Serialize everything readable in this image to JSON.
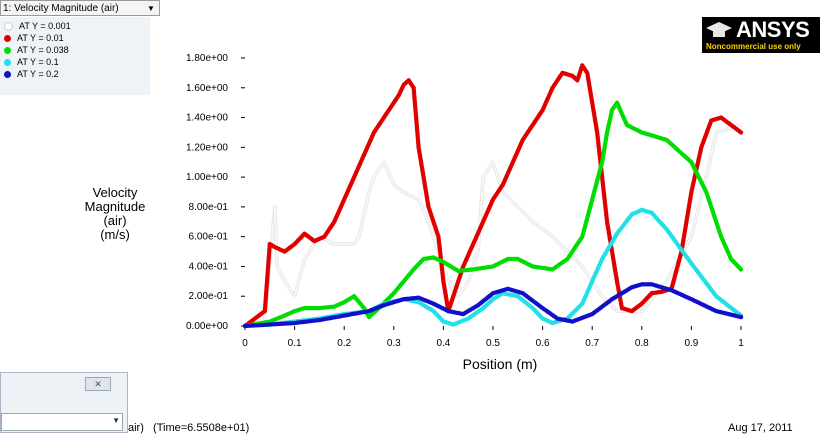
{
  "window": {
    "view_selector_label": "1: Velocity Magnitude (air)",
    "footer_left": "air)   (Time=6.5508e+01)",
    "footer_right": "Aug 17, 2011"
  },
  "logo": {
    "brand": "ANSYS",
    "subtitle": "Noncommercial use only"
  },
  "chart_data": {
    "type": "scatter",
    "xlabel": "Position (m)",
    "ylabel_lines": [
      "Velocity",
      "Magnitude",
      "(air)",
      "(m/s)"
    ],
    "xlim": [
      0,
      1
    ],
    "ylim": [
      0,
      1.8
    ],
    "x_ticks": [
      "0",
      "0.1",
      "0.2",
      "0.3",
      "0.4",
      "0.5",
      "0.6",
      "0.7",
      "0.8",
      "0.9",
      "1"
    ],
    "y_ticks": [
      "0.00e+00",
      "2.00e-01",
      "4.00e-01",
      "6.00e-01",
      "8.00e-01",
      "1.00e+00",
      "1.20e+00",
      "1.40e+00",
      "1.60e+00",
      "1.80e+00"
    ],
    "legend_position": "top-left",
    "series": [
      {
        "name": "AT Y = 0.001",
        "color": "#ffffff",
        "points": [
          [
            0,
            0.0
          ],
          [
            0.02,
            0.01
          ],
          [
            0.04,
            0.05
          ],
          [
            0.06,
            0.8
          ],
          [
            0.065,
            0.4
          ],
          [
            0.08,
            0.3
          ],
          [
            0.1,
            0.2
          ],
          [
            0.12,
            0.45
          ],
          [
            0.15,
            0.6
          ],
          [
            0.18,
            0.55
          ],
          [
            0.2,
            0.55
          ],
          [
            0.22,
            0.55
          ],
          [
            0.23,
            0.6
          ],
          [
            0.25,
            0.9
          ],
          [
            0.26,
            1.0
          ],
          [
            0.28,
            1.1
          ],
          [
            0.3,
            0.95
          ],
          [
            0.32,
            0.9
          ],
          [
            0.33,
            0.88
          ],
          [
            0.35,
            0.85
          ],
          [
            0.37,
            0.7
          ],
          [
            0.39,
            0.5
          ],
          [
            0.41,
            0.3
          ],
          [
            0.43,
            0.2
          ],
          [
            0.45,
            0.3
          ],
          [
            0.47,
            0.5
          ],
          [
            0.48,
            1.0
          ],
          [
            0.5,
            1.1
          ],
          [
            0.52,
            0.9
          ],
          [
            0.55,
            0.8
          ],
          [
            0.58,
            0.7
          ],
          [
            0.6,
            0.65
          ],
          [
            0.62,
            0.6
          ],
          [
            0.65,
            0.5
          ],
          [
            0.68,
            0.4
          ],
          [
            0.7,
            0.3
          ],
          [
            0.72,
            0.2
          ],
          [
            0.75,
            0.1
          ],
          [
            0.8,
            0.1
          ],
          [
            0.85,
            0.3
          ],
          [
            0.9,
            0.6
          ],
          [
            0.93,
            1.0
          ],
          [
            0.95,
            1.3
          ],
          [
            1.0,
            1.35
          ]
        ]
      },
      {
        "name": "AT Y = 0.01",
        "color": "#e00000",
        "points": [
          [
            0.0,
            0.0
          ],
          [
            0.02,
            0.05
          ],
          [
            0.04,
            0.1
          ],
          [
            0.05,
            0.55
          ],
          [
            0.06,
            0.53
          ],
          [
            0.08,
            0.5
          ],
          [
            0.1,
            0.55
          ],
          [
            0.12,
            0.62
          ],
          [
            0.14,
            0.57
          ],
          [
            0.16,
            0.6
          ],
          [
            0.18,
            0.7
          ],
          [
            0.2,
            0.85
          ],
          [
            0.22,
            1.0
          ],
          [
            0.24,
            1.15
          ],
          [
            0.26,
            1.3
          ],
          [
            0.28,
            1.4
          ],
          [
            0.3,
            1.5
          ],
          [
            0.31,
            1.55
          ],
          [
            0.32,
            1.62
          ],
          [
            0.33,
            1.65
          ],
          [
            0.34,
            1.6
          ],
          [
            0.35,
            1.2
          ],
          [
            0.36,
            1.0
          ],
          [
            0.37,
            0.8
          ],
          [
            0.38,
            0.7
          ],
          [
            0.39,
            0.6
          ],
          [
            0.4,
            0.3
          ],
          [
            0.41,
            0.1
          ],
          [
            0.42,
            0.2
          ],
          [
            0.44,
            0.4
          ],
          [
            0.46,
            0.55
          ],
          [
            0.48,
            0.7
          ],
          [
            0.5,
            0.85
          ],
          [
            0.52,
            0.95
          ],
          [
            0.54,
            1.1
          ],
          [
            0.56,
            1.25
          ],
          [
            0.58,
            1.35
          ],
          [
            0.6,
            1.45
          ],
          [
            0.62,
            1.6
          ],
          [
            0.64,
            1.7
          ],
          [
            0.66,
            1.68
          ],
          [
            0.67,
            1.65
          ],
          [
            0.68,
            1.75
          ],
          [
            0.69,
            1.7
          ],
          [
            0.7,
            1.5
          ],
          [
            0.71,
            1.3
          ],
          [
            0.72,
            1.0
          ],
          [
            0.73,
            0.7
          ],
          [
            0.74,
            0.5
          ],
          [
            0.75,
            0.3
          ],
          [
            0.76,
            0.12
          ],
          [
            0.78,
            0.1
          ],
          [
            0.8,
            0.15
          ],
          [
            0.82,
            0.22
          ],
          [
            0.84,
            0.23
          ],
          [
            0.86,
            0.25
          ],
          [
            0.88,
            0.5
          ],
          [
            0.9,
            0.9
          ],
          [
            0.92,
            1.2
          ],
          [
            0.94,
            1.38
          ],
          [
            0.96,
            1.4
          ],
          [
            0.98,
            1.35
          ],
          [
            1.0,
            1.3
          ]
        ]
      },
      {
        "name": "AT Y = 0.038",
        "color": "#00dd00",
        "points": [
          [
            0.0,
            0.0
          ],
          [
            0.05,
            0.03
          ],
          [
            0.08,
            0.07
          ],
          [
            0.1,
            0.1
          ],
          [
            0.12,
            0.12
          ],
          [
            0.15,
            0.12
          ],
          [
            0.18,
            0.13
          ],
          [
            0.2,
            0.16
          ],
          [
            0.22,
            0.2
          ],
          [
            0.24,
            0.12
          ],
          [
            0.25,
            0.06
          ],
          [
            0.27,
            0.12
          ],
          [
            0.3,
            0.22
          ],
          [
            0.32,
            0.3
          ],
          [
            0.34,
            0.38
          ],
          [
            0.36,
            0.45
          ],
          [
            0.38,
            0.46
          ],
          [
            0.4,
            0.43
          ],
          [
            0.43,
            0.37
          ],
          [
            0.46,
            0.38
          ],
          [
            0.5,
            0.4
          ],
          [
            0.53,
            0.45
          ],
          [
            0.55,
            0.45
          ],
          [
            0.58,
            0.4
          ],
          [
            0.62,
            0.38
          ],
          [
            0.65,
            0.45
          ],
          [
            0.68,
            0.6
          ],
          [
            0.7,
            0.85
          ],
          [
            0.72,
            1.1
          ],
          [
            0.73,
            1.3
          ],
          [
            0.74,
            1.45
          ],
          [
            0.75,
            1.5
          ],
          [
            0.77,
            1.35
          ],
          [
            0.8,
            1.3
          ],
          [
            0.85,
            1.25
          ],
          [
            0.9,
            1.1
          ],
          [
            0.93,
            0.9
          ],
          [
            0.96,
            0.6
          ],
          [
            0.98,
            0.45
          ],
          [
            1.0,
            0.38
          ]
        ]
      },
      {
        "name": "AT Y = 0.1",
        "color": "#22e0e8",
        "points": [
          [
            0.0,
            0.0
          ],
          [
            0.05,
            0.01
          ],
          [
            0.1,
            0.03
          ],
          [
            0.15,
            0.05
          ],
          [
            0.2,
            0.08
          ],
          [
            0.25,
            0.1
          ],
          [
            0.28,
            0.15
          ],
          [
            0.32,
            0.18
          ],
          [
            0.35,
            0.16
          ],
          [
            0.38,
            0.1
          ],
          [
            0.4,
            0.03
          ],
          [
            0.42,
            0.01
          ],
          [
            0.45,
            0.05
          ],
          [
            0.48,
            0.12
          ],
          [
            0.5,
            0.18
          ],
          [
            0.52,
            0.22
          ],
          [
            0.55,
            0.2
          ],
          [
            0.58,
            0.12
          ],
          [
            0.6,
            0.05
          ],
          [
            0.62,
            0.02
          ],
          [
            0.65,
            0.05
          ],
          [
            0.68,
            0.15
          ],
          [
            0.7,
            0.3
          ],
          [
            0.72,
            0.45
          ],
          [
            0.75,
            0.62
          ],
          [
            0.78,
            0.75
          ],
          [
            0.8,
            0.78
          ],
          [
            0.82,
            0.76
          ],
          [
            0.85,
            0.65
          ],
          [
            0.9,
            0.42
          ],
          [
            0.95,
            0.2
          ],
          [
            1.0,
            0.07
          ]
        ]
      },
      {
        "name": "AT Y = 0.2",
        "color": "#1010c8",
        "points": [
          [
            0.0,
            0.0
          ],
          [
            0.05,
            0.01
          ],
          [
            0.1,
            0.02
          ],
          [
            0.15,
            0.04
          ],
          [
            0.2,
            0.07
          ],
          [
            0.25,
            0.1
          ],
          [
            0.28,
            0.14
          ],
          [
            0.32,
            0.18
          ],
          [
            0.35,
            0.19
          ],
          [
            0.38,
            0.15
          ],
          [
            0.41,
            0.1
          ],
          [
            0.44,
            0.08
          ],
          [
            0.47,
            0.14
          ],
          [
            0.5,
            0.22
          ],
          [
            0.53,
            0.25
          ],
          [
            0.56,
            0.22
          ],
          [
            0.6,
            0.12
          ],
          [
            0.63,
            0.05
          ],
          [
            0.66,
            0.03
          ],
          [
            0.7,
            0.08
          ],
          [
            0.74,
            0.18
          ],
          [
            0.78,
            0.26
          ],
          [
            0.8,
            0.28
          ],
          [
            0.82,
            0.28
          ],
          [
            0.86,
            0.24
          ],
          [
            0.9,
            0.18
          ],
          [
            0.95,
            0.1
          ],
          [
            1.0,
            0.06
          ]
        ]
      }
    ]
  }
}
